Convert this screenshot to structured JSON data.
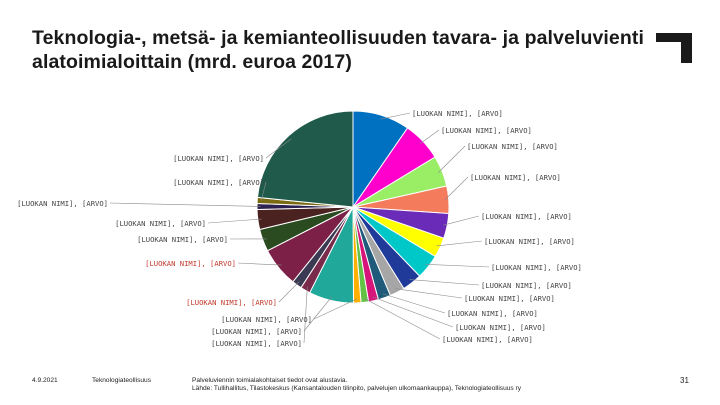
{
  "slide": {
    "title": "Teknologia-, metsä- ja kemianteollisuuden tavara- ja palveluvienti alatoimialoittain (mrd. euroa 2017)",
    "footer_date": "4.9.2021",
    "footer_org": "Teknologiateollisuus",
    "footer_note_line1": "Palveluviennin toimialakohtaiset tiedot ovat alustavia.",
    "footer_note_line2": "Lähde: Tullihallitus, Tilastokeskus (Kansantalouden tilinpito, palvelujen ulkomaankauppa), Teknologiateollisuus ry",
    "page_number": "31"
  },
  "chart_data": {
    "type": "pie",
    "title": "Teknologia-, metsä- ja kemianteollisuuden tavara- ja palveluvienti alatoimialoittain (mrd. euroa 2017)",
    "label_template": "[LUOKAN NIMI], [ARVO]",
    "slices": [
      {
        "label": "[LUOKAN NIMI], [ARVO]",
        "value": 11.5,
        "color": "#0070c0"
      },
      {
        "label": "[LUOKAN NIMI], [ARVO]",
        "value": 8.0,
        "color": "#ff00cc"
      },
      {
        "label": "[LUOKAN NIMI], [ARVO]",
        "value": 6.2,
        "color": "#99ee66"
      },
      {
        "label": "[LUOKAN NIMI], [ARVO]",
        "value": 5.5,
        "color": "#f47c5c"
      },
      {
        "label": "[LUOKAN NIMI], [ARVO]",
        "value": 5.0,
        "color": "#6a2bb8"
      },
      {
        "label": "[LUOKAN NIMI], [ARVO]",
        "value": 4.0,
        "color": "#ffff00"
      },
      {
        "label": "[LUOKAN NIMI], [ARVO]",
        "value": 5.0,
        "color": "#00c8c8"
      },
      {
        "label": "[LUOKAN NIMI], [ARVO]",
        "value": 4.0,
        "color": "#1f3a99"
      },
      {
        "label": "[LUOKAN NIMI], [ARVO]",
        "value": 3.0,
        "color": "#a6a6a6"
      },
      {
        "label": "[LUOKAN NIMI], [ARVO]",
        "value": 2.5,
        "color": "#1f5a7a"
      },
      {
        "label": "[LUOKAN NIMI], [ARVO]",
        "value": 2.0,
        "color": "#d6157a"
      },
      {
        "label": "[LUOKAN NIMI], [ARVO]",
        "value": 1.5,
        "color": "#63c245"
      },
      {
        "label": "[LUOKAN NIMI], [ARVO]",
        "value": 1.5,
        "color": "#ffb000"
      },
      {
        "label": "[LUOKAN NIMI], [ARVO]",
        "value": 9.0,
        "color": "#20a89a"
      },
      {
        "label": "[LUOKAN NIMI], [ARVO]",
        "value": 2.0,
        "color": "#7a2b4b"
      },
      {
        "label": "[LUOKAN NIMI], [ARVO]",
        "value": 2.0,
        "color": "#3a3a52"
      },
      {
        "label": "[LUOKAN NIMI], [ARVO]",
        "value": 8.0,
        "color": "#7c2047"
      },
      {
        "label": "[LUOKAN NIMI], [ARVO]",
        "value": 4.5,
        "color": "#2a4a1f"
      },
      {
        "label": "[LUOKAN NIMI], [ARVO]",
        "value": 4.0,
        "color": "#4a2320"
      },
      {
        "label": "[LUOKAN NIMI], [ARVO]",
        "value": 1.2,
        "color": "#2b2050"
      },
      {
        "label": "[LUOKAN NIMI], [ARVO]",
        "value": 1.2,
        "color": "#7a6a10"
      },
      {
        "label": "[LUOKAN NIMI], [ARVO]",
        "value": 28.0,
        "color": "#1f5a4a"
      }
    ]
  }
}
